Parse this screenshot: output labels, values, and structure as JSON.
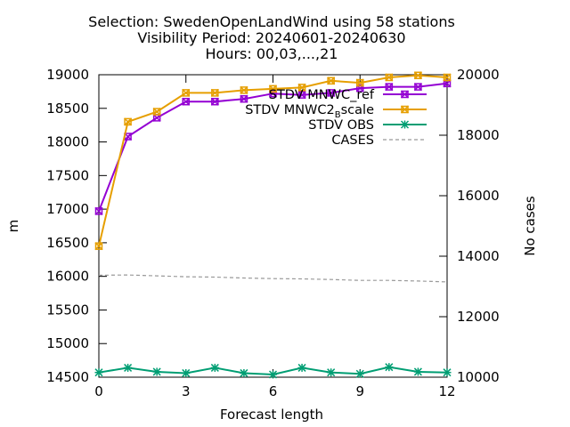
{
  "chart_data": {
    "type": "line",
    "title_lines": [
      "Selection: SwedenOpenLandWind using    58 stations",
      "Visibility   Period: 20240601-20240630",
      "Hours: 00,03,...,21"
    ],
    "xlabel": "Forecast length",
    "ylabel": "m",
    "y2label": "No cases",
    "x": [
      0,
      1,
      2,
      3,
      4,
      5,
      6,
      7,
      8,
      9,
      10,
      11,
      12
    ],
    "xlim": [
      0,
      12
    ],
    "xticks": [
      0,
      3,
      6,
      9,
      12
    ],
    "ylim": [
      14500,
      19000
    ],
    "yticks": [
      14500,
      15000,
      15500,
      16000,
      16500,
      17000,
      17500,
      18000,
      18500,
      19000
    ],
    "y2lim": [
      10000,
      20000
    ],
    "y2ticks": [
      10000,
      12000,
      14000,
      16000,
      18000,
      20000
    ],
    "grid": false,
    "legend_position": "top-right",
    "series": [
      {
        "name": "STDV MNWC_ref",
        "color": "#9400d3",
        "axis": "y",
        "marker": "box",
        "dash": "solid",
        "values": [
          16970,
          18080,
          18360,
          18600,
          18600,
          18640,
          18720,
          18700,
          18730,
          18800,
          18820,
          18820,
          18870
        ]
      },
      {
        "name_main": "STDV MNWC2",
        "name_sub": "B",
        "name_tail": "scale",
        "color": "#e69f00",
        "axis": "y",
        "marker": "box",
        "dash": "solid",
        "values": [
          16450,
          18300,
          18450,
          18730,
          18730,
          18770,
          18790,
          18810,
          18910,
          18880,
          18960,
          18990,
          18960
        ]
      },
      {
        "name": "STDV OBS",
        "color": "#009e73",
        "axis": "y",
        "marker": "star",
        "dash": "solid",
        "values": [
          14570,
          14640,
          14580,
          14560,
          14640,
          14560,
          14540,
          14640,
          14570,
          14550,
          14650,
          14580,
          14570
        ]
      },
      {
        "name": "CASES",
        "color": "#999999",
        "axis": "y2",
        "marker": "none",
        "dash": "dashed",
        "values": [
          13370,
          13380,
          13350,
          13320,
          13310,
          13280,
          13260,
          13250,
          13230,
          13200,
          13200,
          13180,
          13150
        ]
      }
    ]
  }
}
